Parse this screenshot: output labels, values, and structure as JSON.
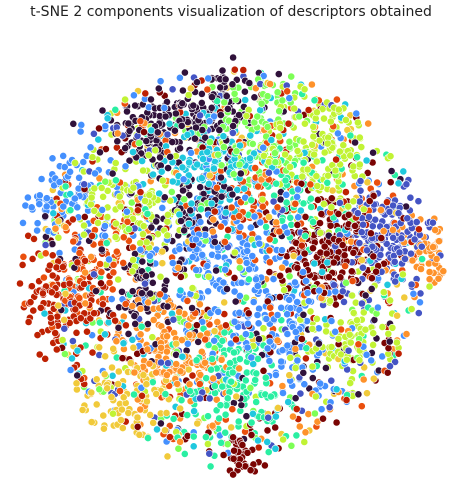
{
  "chart_data": {
    "type": "scatter",
    "title": "t-SNE 2 components visualization of descriptors obtained",
    "xlabel": "",
    "ylabel": "",
    "xlim": [
      -100,
      100
    ],
    "ylim": [
      -100,
      100
    ],
    "grid": false,
    "axes_visible": false,
    "legend": "none",
    "point_edge_color": "#ffffff",
    "palette": [
      "#30123b",
      "#4454c4",
      "#4490fe",
      "#1fc8de",
      "#29efa2",
      "#7dff56",
      "#c1f334",
      "#f1ca3a",
      "#fe922a",
      "#ea4f0d",
      "#be2102",
      "#7a0403"
    ],
    "clusters": [
      {
        "center": [
          -35,
          58
        ],
        "spread": 9,
        "n": 110,
        "color_index": 0
      },
      {
        "center": [
          -8,
          68
        ],
        "spread": 10,
        "n": 120,
        "color_index": 0
      },
      {
        "center": [
          -10,
          45
        ],
        "spread": 12,
        "n": 130,
        "color_index": 3
      },
      {
        "center": [
          -15,
          22
        ],
        "spread": 9,
        "n": 90,
        "color_index": 0
      },
      {
        "center": [
          45,
          5
        ],
        "spread": 11,
        "n": 200,
        "color_index": 11
      },
      {
        "center": [
          70,
          10
        ],
        "spread": 11,
        "n": 170,
        "color_index": 1
      },
      {
        "center": [
          92,
          5
        ],
        "spread": 9,
        "n": 80,
        "color_index": 8
      },
      {
        "center": [
          40,
          50
        ],
        "spread": 14,
        "n": 160,
        "color_index": 6
      },
      {
        "center": [
          15,
          60
        ],
        "spread": 12,
        "n": 110,
        "color_index": 5
      },
      {
        "center": [
          -5,
          5
        ],
        "spread": 18,
        "n": 200,
        "color_index": 2
      },
      {
        "center": [
          -45,
          25
        ],
        "spread": 14,
        "n": 120,
        "color_index": 6
      },
      {
        "center": [
          -75,
          30
        ],
        "spread": 12,
        "n": 100,
        "color_index": 2
      },
      {
        "center": [
          -78,
          -18
        ],
        "spread": 12,
        "n": 140,
        "color_index": 10
      },
      {
        "center": [
          -25,
          -40
        ],
        "spread": 13,
        "n": 150,
        "color_index": 8
      },
      {
        "center": [
          -45,
          -62
        ],
        "spread": 13,
        "n": 130,
        "color_index": 7
      },
      {
        "center": [
          0,
          -55
        ],
        "spread": 14,
        "n": 140,
        "color_index": 4
      },
      {
        "center": [
          25,
          -30
        ],
        "spread": 14,
        "n": 130,
        "color_index": 2
      },
      {
        "center": [
          50,
          -35
        ],
        "spread": 11,
        "n": 90,
        "color_index": 6
      },
      {
        "center": [
          5,
          -88
        ],
        "spread": 7,
        "n": 50,
        "color_index": 11
      },
      {
        "center": [
          -60,
          0
        ],
        "spread": 11,
        "n": 80,
        "color_index": 9
      },
      {
        "center": [
          10,
          30
        ],
        "spread": 12,
        "n": 80,
        "color_index": 9
      },
      {
        "center": [
          30,
          30
        ],
        "spread": 10,
        "n": 60,
        "color_index": 4
      },
      {
        "center": [
          -40,
          -15
        ],
        "spread": 10,
        "n": 60,
        "color_index": 0
      },
      {
        "center": [
          0,
          0
        ],
        "spread": 55,
        "n": 1300,
        "color_index": -1
      }
    ]
  }
}
